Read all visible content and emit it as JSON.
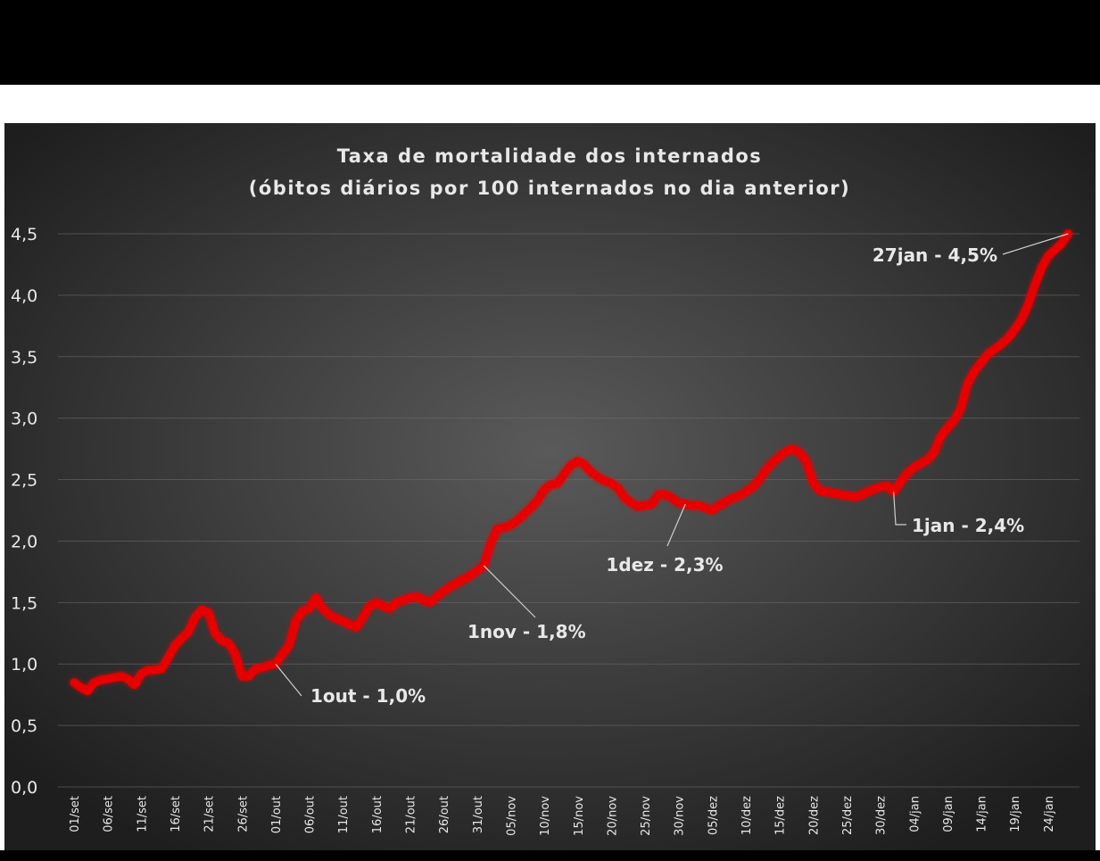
{
  "chart_data": {
    "type": "line",
    "title": "Taxa de mortalidade  dos internados",
    "subtitle": "(óbitos diários por 100 internados  no dia anterior)",
    "categories": [
      "01/set",
      null,
      null,
      null,
      null,
      "06/set",
      null,
      null,
      null,
      null,
      "11/set",
      null,
      null,
      null,
      null,
      "16/set",
      null,
      null,
      null,
      null,
      "21/set",
      null,
      null,
      null,
      null,
      "26/set",
      null,
      null,
      null,
      null,
      "01/out",
      null,
      null,
      null,
      null,
      "06/out",
      null,
      null,
      null,
      null,
      "11/out",
      null,
      null,
      null,
      null,
      "16/out",
      null,
      null,
      null,
      null,
      "21/out",
      null,
      null,
      null,
      null,
      "26/out",
      null,
      null,
      null,
      null,
      "31/out",
      null,
      null,
      null,
      null,
      "05/nov",
      null,
      null,
      null,
      null,
      "10/nov",
      null,
      null,
      null,
      null,
      "15/nov",
      null,
      null,
      null,
      null,
      "20/nov",
      null,
      null,
      null,
      null,
      "25/nov",
      null,
      null,
      null,
      null,
      "30/nov",
      null,
      null,
      null,
      null,
      "05/dez",
      null,
      null,
      null,
      null,
      "10/dez",
      null,
      null,
      null,
      null,
      "15/dez",
      null,
      null,
      null,
      null,
      "20/dez",
      null,
      null,
      null,
      null,
      "25/dez",
      null,
      null,
      null,
      null,
      "30/dez",
      null,
      null,
      null,
      null,
      "04/jan",
      null,
      null,
      null,
      null,
      "09/jan",
      null,
      null,
      null,
      null,
      "14/jan",
      null,
      null,
      null,
      null,
      "19/jan",
      null,
      null,
      null,
      null,
      "24/jan",
      null,
      null,
      null
    ],
    "values": [
      0.85,
      0.81,
      0.78,
      0.85,
      0.87,
      0.88,
      0.89,
      0.9,
      0.88,
      0.83,
      0.92,
      0.95,
      0.95,
      0.96,
      1.05,
      1.15,
      1.21,
      1.26,
      1.38,
      1.44,
      1.42,
      1.25,
      1.19,
      1.17,
      1.08,
      0.9,
      0.9,
      0.96,
      0.97,
      0.99,
      1.0,
      1.08,
      1.15,
      1.35,
      1.43,
      1.45,
      1.54,
      1.45,
      1.4,
      1.37,
      1.35,
      1.32,
      1.3,
      1.38,
      1.47,
      1.5,
      1.47,
      1.45,
      1.5,
      1.52,
      1.54,
      1.55,
      1.52,
      1.5,
      1.55,
      1.59,
      1.63,
      1.66,
      1.69,
      1.72,
      1.76,
      1.8,
      1.98,
      2.1,
      2.11,
      2.13,
      2.17,
      2.22,
      2.27,
      2.33,
      2.42,
      2.46,
      2.47,
      2.55,
      2.62,
      2.65,
      2.62,
      2.56,
      2.52,
      2.49,
      2.47,
      2.43,
      2.35,
      2.31,
      2.28,
      2.29,
      2.3,
      2.38,
      2.38,
      2.35,
      2.31,
      2.3,
      2.29,
      2.29,
      2.27,
      2.25,
      2.29,
      2.32,
      2.35,
      2.37,
      2.4,
      2.44,
      2.5,
      2.58,
      2.64,
      2.69,
      2.73,
      2.75,
      2.72,
      2.65,
      2.48,
      2.41,
      2.4,
      2.39,
      2.38,
      2.37,
      2.36,
      2.37,
      2.4,
      2.42,
      2.44,
      2.45,
      2.4,
      2.48,
      2.55,
      2.6,
      2.63,
      2.66,
      2.72,
      2.85,
      2.92,
      2.98,
      3.08,
      3.28,
      3.38,
      3.45,
      3.52,
      3.56,
      3.6,
      3.65,
      3.72,
      3.8,
      3.92,
      4.08,
      4.22,
      4.32,
      4.37,
      4.42,
      4.5
    ],
    "color": "#e60000",
    "ylim": [
      0,
      4.5
    ],
    "yticks": [
      {
        "value": 0,
        "label": "0,0"
      },
      {
        "value": 0.5,
        "label": "0,5"
      },
      {
        "value": 1,
        "label": "1,0"
      },
      {
        "value": 1.5,
        "label": "1,5"
      },
      {
        "value": 2,
        "label": "2,0"
      },
      {
        "value": 2.5,
        "label": "2,5"
      },
      {
        "value": 3,
        "label": "3,0"
      },
      {
        "value": 3.5,
        "label": "3,5"
      },
      {
        "value": 4,
        "label": "4,0"
      },
      {
        "value": 4.5,
        "label": "4,5"
      }
    ],
    "grid": true,
    "annotations": [
      "1out - 1,0%",
      "1nov - 1,8%",
      "1dez - 2,3%",
      "1jan - 2,4%",
      "27jan - 4,5%"
    ]
  }
}
